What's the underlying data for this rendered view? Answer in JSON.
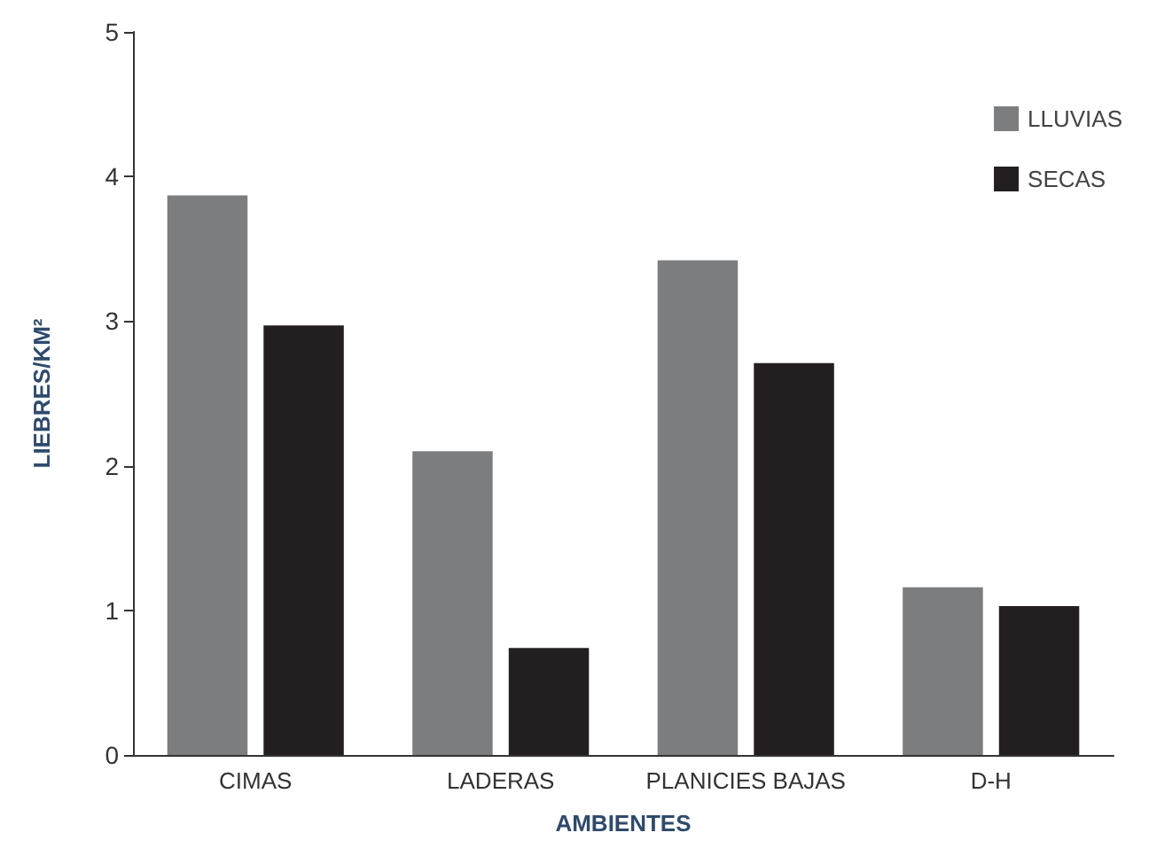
{
  "chart_data": {
    "type": "bar",
    "xlabel": "AMBIENTES",
    "ylabel": "LIEBRES/KM²",
    "categories": [
      "CIMAS",
      "LADERAS",
      "PLANICIES BAJAS",
      "D-H"
    ],
    "series": [
      {
        "name": "LLUVIAS",
        "color": "#7b7d7f",
        "values": [
          3.87,
          2.1,
          3.42,
          1.16
        ]
      },
      {
        "name": "SECAS",
        "color": "#231f20",
        "values": [
          2.97,
          0.74,
          2.71,
          1.03
        ]
      }
    ],
    "ylim": [
      0,
      5
    ],
    "yticks": [
      0,
      1,
      2,
      3,
      4,
      5
    ],
    "grid": false,
    "legend": "top right"
  }
}
